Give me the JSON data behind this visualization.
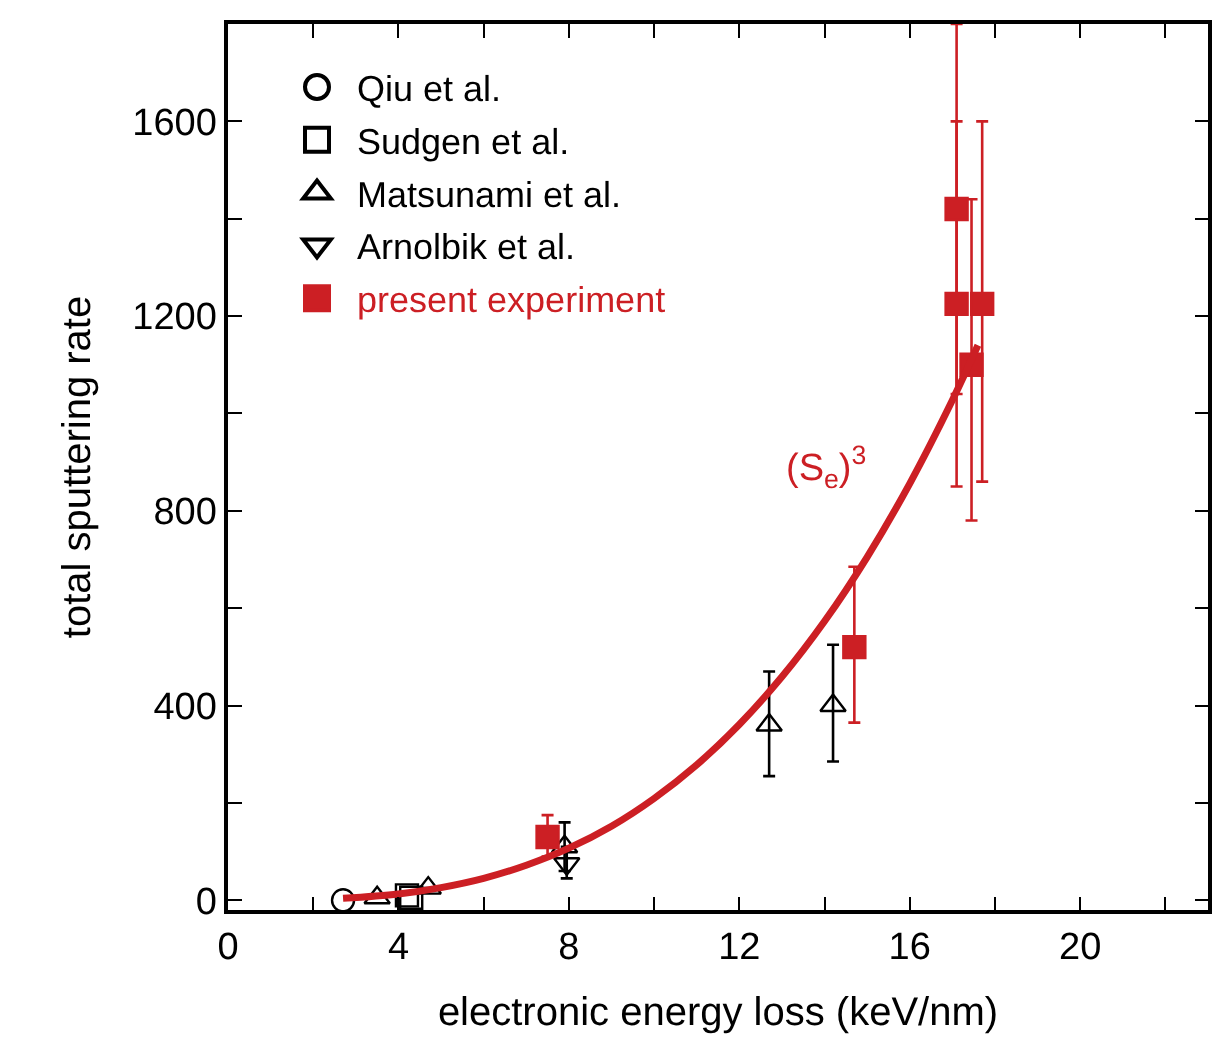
{
  "chart_data": {
    "type": "scatter",
    "xlabel": "electronic energy loss (keV/nm)",
    "ylabel": "total sputtering rate",
    "xlim": [
      0,
      23
    ],
    "ylim": [
      -20,
      1800
    ],
    "xticks": [
      0,
      {
        "value": 2,
        "label": null
      },
      4,
      {
        "value": 6,
        "label": null
      },
      8,
      {
        "value": 10,
        "label": null
      },
      12,
      {
        "value": 14,
        "label": null
      },
      16,
      {
        "value": 18,
        "label": null
      },
      20,
      {
        "value": 22,
        "label": null
      }
    ],
    "yticks": [
      0,
      {
        "value": 200,
        "label": null
      },
      400,
      {
        "value": 600,
        "label": null
      },
      800,
      {
        "value": 1000,
        "label": null
      },
      1200,
      {
        "value": 1400,
        "label": null
      },
      1600
    ],
    "legend": "top left",
    "series": [
      {
        "name": "Qiu et al.",
        "color": "#000000",
        "marker": "circle",
        "x": [
          2.7
        ],
        "values": [
          0
        ]
      },
      {
        "name": "Sudgen et al.",
        "color": "#000000",
        "marker": "square",
        "x": [
          4.2,
          4.3
        ],
        "values": [
          10,
          5
        ]
      },
      {
        "name": "Matsunami et al.",
        "color": "#000000",
        "marker": "triangle",
        "x": [
          3.5,
          4.7,
          7.9,
          12.7,
          14.2
        ],
        "values": [
          5,
          25,
          110,
          360,
          400
        ],
        "errors": [
          null,
          null,
          [
            60,
            160
          ],
          [
            255,
            470
          ],
          [
            285,
            525
          ]
        ]
      },
      {
        "name": "Arnolbik et al.",
        "color": "#000000",
        "marker": "triangle-down",
        "x": [
          7.95
        ],
        "values": [
          75
        ],
        "errors": [
          [
            45,
            110
          ]
        ]
      },
      {
        "name": "present experiment",
        "color": "#cc1f24",
        "marker": "square",
        "x": [
          7.5,
          14.7,
          17.1,
          17.1,
          17.45,
          17.7
        ],
        "values": [
          130,
          520,
          1420,
          1225,
          1100,
          1225
        ],
        "errors": [
          [
            90,
            175
          ],
          [
            365,
            685
          ],
          [
            1040,
            1800
          ],
          [
            850,
            1600
          ],
          [
            780,
            1440
          ],
          [
            860,
            1600
          ]
        ]
      },
      {
        "type": "line",
        "color": "#cc1f24",
        "marker": "none",
        "x": [
          2.7,
          4,
          5,
          6,
          7,
          8,
          9,
          10,
          11,
          12,
          13,
          14,
          15,
          16,
          17,
          17.6
        ],
        "values": [
          4,
          13,
          26,
          45,
          72,
          107,
          152,
          209,
          278,
          361,
          459,
          573,
          705,
          856,
          1027,
          1140
        ]
      }
    ],
    "annotations": [
      "(S$_{e}$)$^{3}$"
    ]
  }
}
